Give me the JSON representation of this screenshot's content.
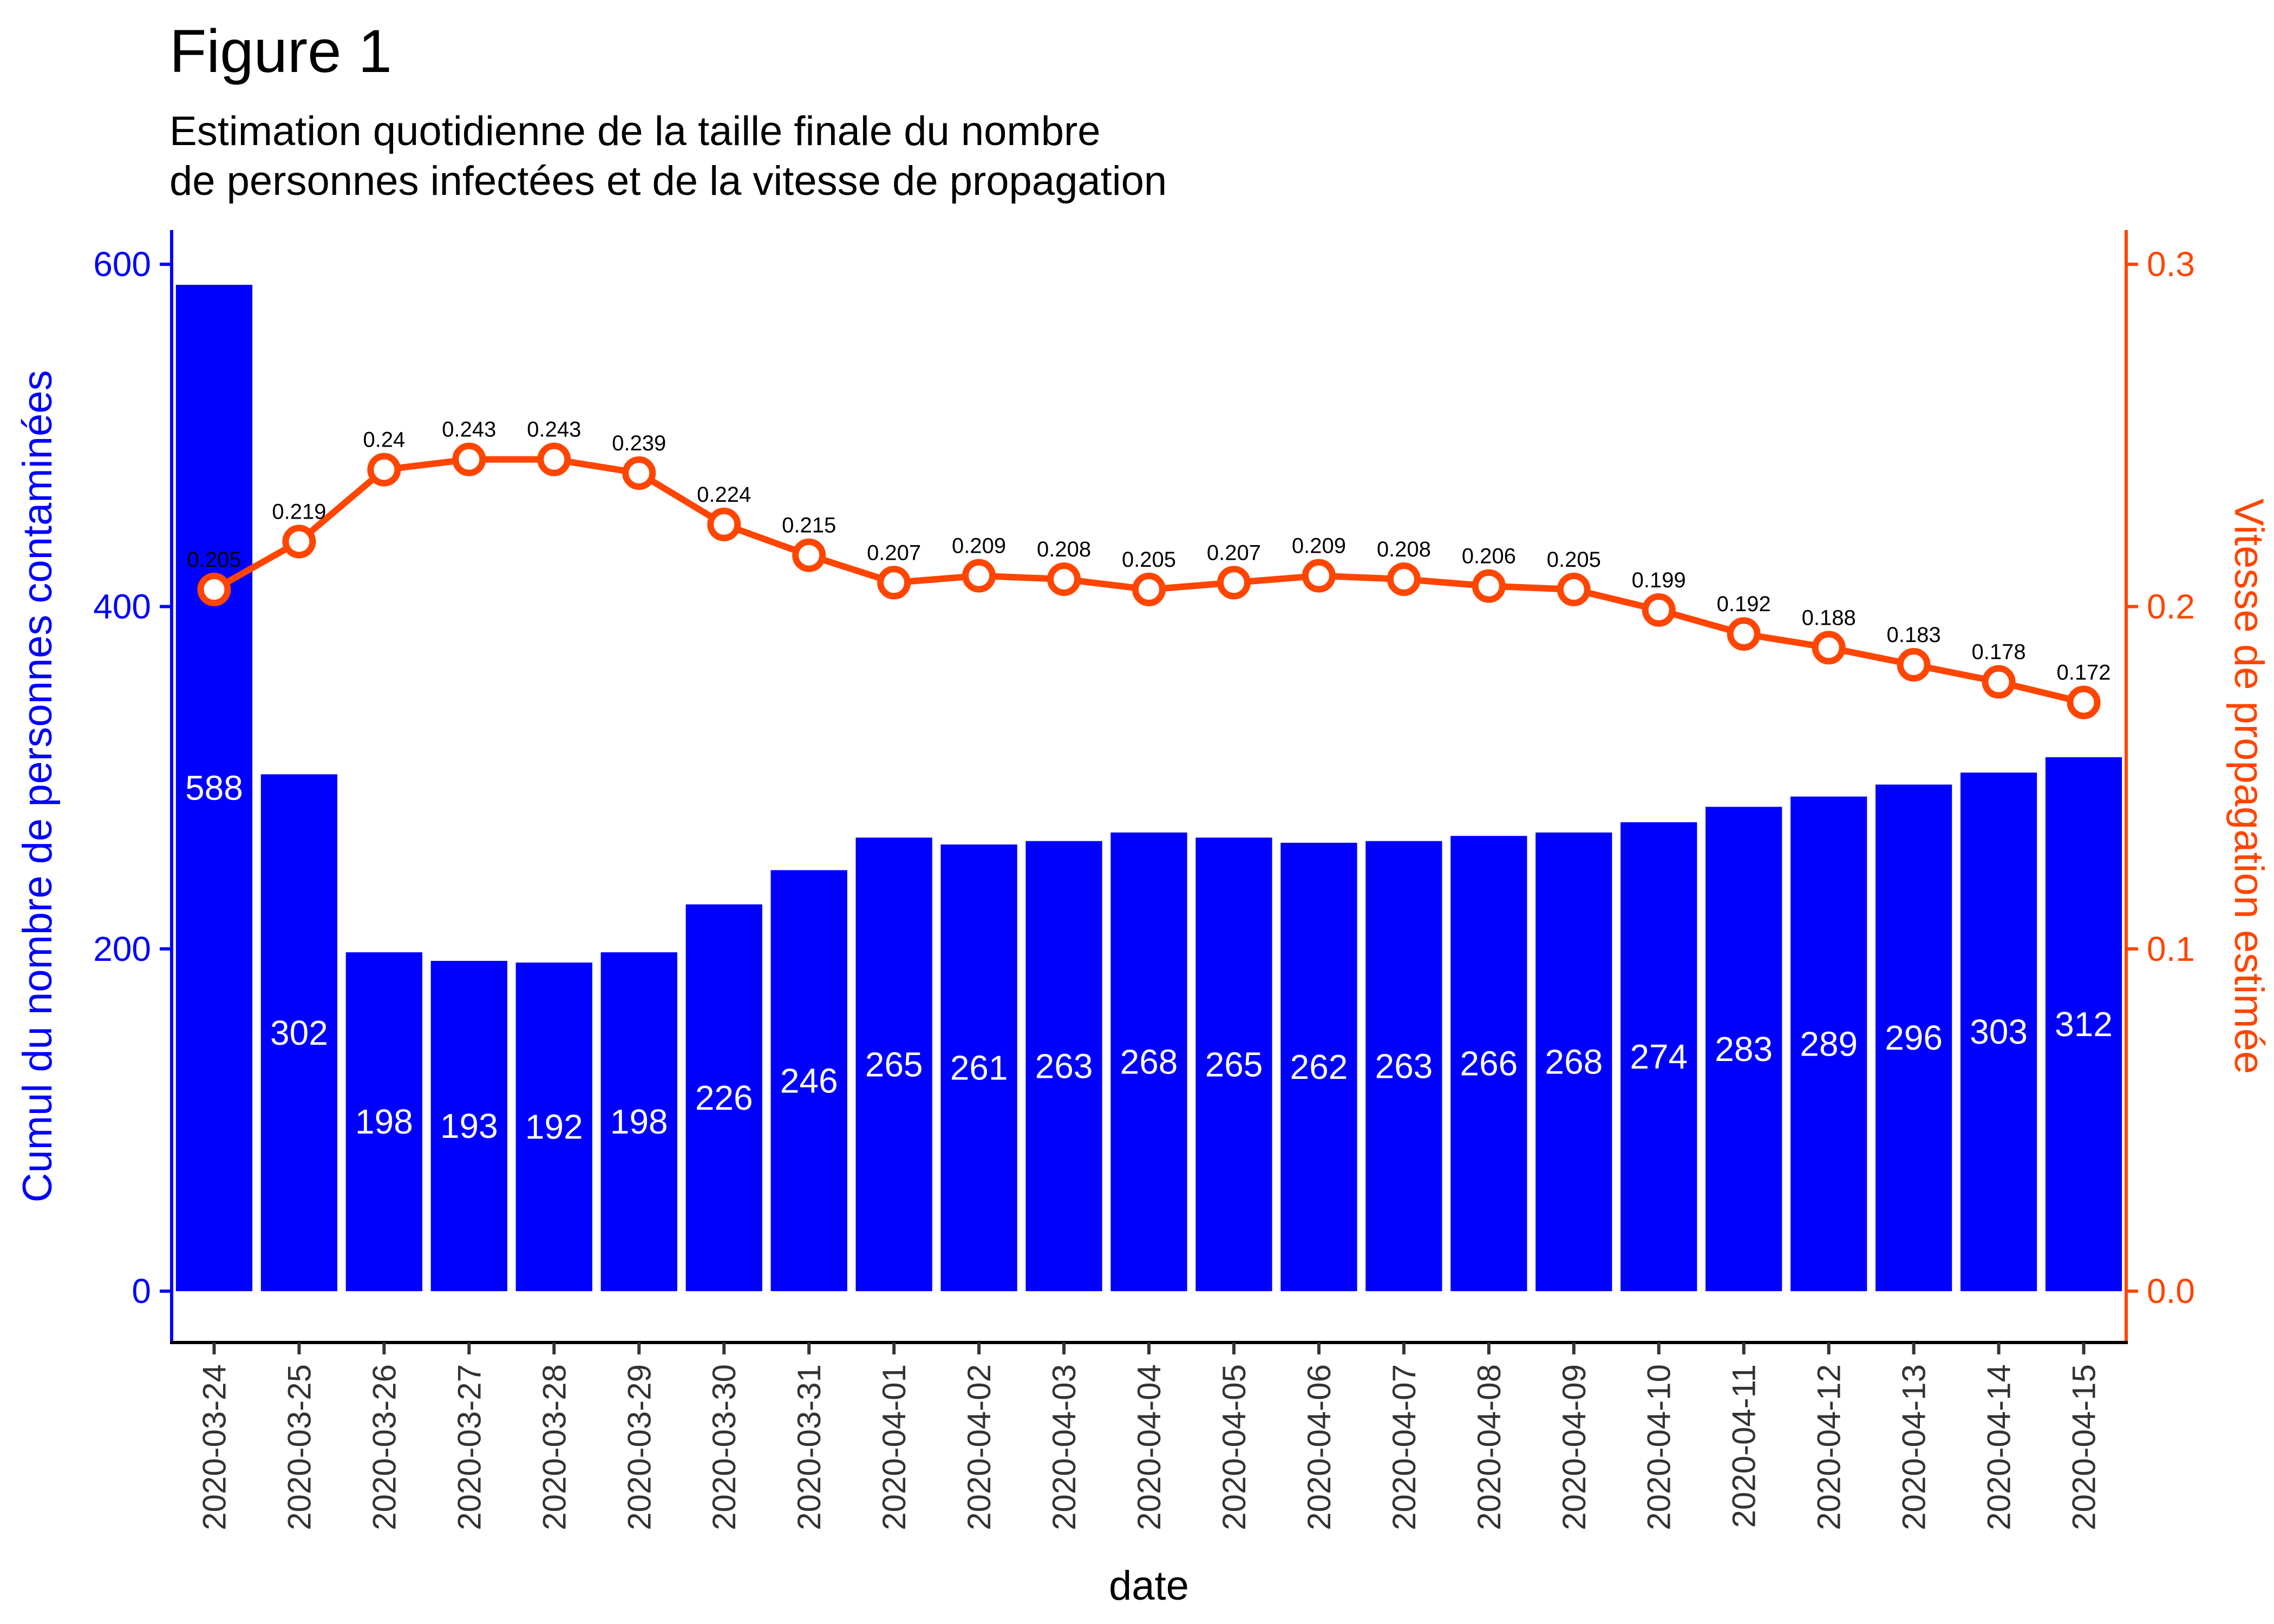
{
  "header": {
    "title": "Figure 1",
    "subtitle_line1": "Estimation quotidienne de la taille finale du nombre",
    "subtitle_line2": "de personnes infectées et de la vitesse de propagation"
  },
  "colors": {
    "bars": "#0000ff",
    "line": "#ff4500",
    "left_axis": "#0000ff",
    "right_axis": "#ff4500"
  },
  "chart_data": {
    "type": "bar",
    "title": "Figure 1",
    "subtitle": "Estimation quotidienne de la taille finale du nombre de personnes infectées et de la vitesse de propagation",
    "xlabel": "date",
    "ylabel": "Cumul du nombre de personnes contaminées",
    "y2label": "Vitesse de propagation estimée",
    "ylim": [
      -30,
      620
    ],
    "y2lim": [
      -0.015,
      0.31
    ],
    "yticks": [
      "0",
      "200",
      "400",
      "600"
    ],
    "y2ticks": [
      "0.0",
      "0.1",
      "0.2",
      "0.3"
    ],
    "grid": false,
    "categories": [
      "2020-03-24",
      "2020-03-25",
      "2020-03-26",
      "2020-03-27",
      "2020-03-28",
      "2020-03-29",
      "2020-03-30",
      "2020-03-31",
      "2020-04-01",
      "2020-04-02",
      "2020-04-03",
      "2020-04-04",
      "2020-04-05",
      "2020-04-06",
      "2020-04-07",
      "2020-04-08",
      "2020-04-09",
      "2020-04-10",
      "2020-04-11",
      "2020-04-12",
      "2020-04-13",
      "2020-04-14",
      "2020-04-15"
    ],
    "series": [
      {
        "type": "bar",
        "axis": "left",
        "values": [
          588,
          302,
          198,
          193,
          192,
          198,
          226,
          246,
          265,
          261,
          263,
          268,
          265,
          262,
          263,
          266,
          268,
          274,
          283,
          289,
          296,
          303,
          312
        ],
        "labels": [
          "588",
          "302",
          "198",
          "193",
          "192",
          "198",
          "226",
          "246",
          "265",
          "261",
          "263",
          "268",
          "265",
          "262",
          "263",
          "266",
          "268",
          "274",
          "283",
          "289",
          "296",
          "303",
          "312"
        ]
      },
      {
        "type": "line",
        "axis": "right",
        "values": [
          0.205,
          0.219,
          0.24,
          0.243,
          0.243,
          0.239,
          0.224,
          0.215,
          0.207,
          0.209,
          0.208,
          0.205,
          0.207,
          0.209,
          0.208,
          0.206,
          0.205,
          0.199,
          0.192,
          0.188,
          0.183,
          0.178,
          0.172
        ],
        "labels": [
          "0.205",
          "0.219",
          "0.24",
          "0.243",
          "0.243",
          "0.239",
          "0.224",
          "0.215",
          "0.207",
          "0.209",
          "0.208",
          "0.205",
          "0.207",
          "0.209",
          "0.208",
          "0.206",
          "0.205",
          "0.199",
          "0.192",
          "0.188",
          "0.183",
          "0.178",
          "0.172"
        ]
      }
    ]
  }
}
